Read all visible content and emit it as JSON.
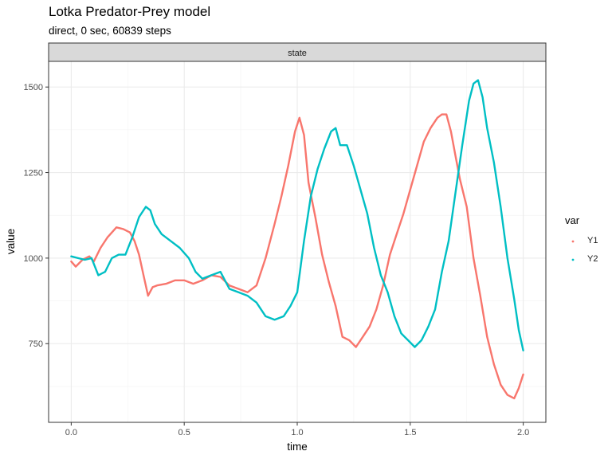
{
  "title": "Lotka Predator-Prey model",
  "subtitle": "direct, 0 sec, 60839 steps",
  "chart_data": {
    "type": "line",
    "title": "Lotka Predator-Prey model",
    "subtitle": "direct, 0 sec, 60839 steps",
    "facet": "state",
    "xlabel": "time",
    "ylabel": "value",
    "xlim": [
      -0.1,
      2.1
    ],
    "ylim": [
      520,
      1575
    ],
    "x_ticks": [
      0.0,
      0.5,
      1.0,
      1.5,
      2.0
    ],
    "x_tick_labels": [
      "0.0",
      "0.5",
      "1.0",
      "1.5",
      "2.0"
    ],
    "y_ticks": [
      750,
      1000,
      1250,
      1500
    ],
    "y_tick_labels": [
      "750",
      "1000",
      "1250",
      "1500"
    ],
    "grid": true,
    "legend": {
      "title": "var",
      "position": "right"
    },
    "series": [
      {
        "name": "Y1",
        "color": "#F8766D",
        "x": [
          0.0,
          0.02,
          0.05,
          0.08,
          0.1,
          0.13,
          0.16,
          0.2,
          0.23,
          0.26,
          0.28,
          0.3,
          0.32,
          0.34,
          0.36,
          0.38,
          0.42,
          0.46,
          0.5,
          0.54,
          0.58,
          0.62,
          0.66,
          0.7,
          0.74,
          0.78,
          0.82,
          0.86,
          0.9,
          0.93,
          0.96,
          0.99,
          1.01,
          1.03,
          1.05,
          1.08,
          1.11,
          1.14,
          1.17,
          1.2,
          1.23,
          1.26,
          1.29,
          1.32,
          1.35,
          1.38,
          1.41,
          1.44,
          1.47,
          1.5,
          1.53,
          1.56,
          1.59,
          1.62,
          1.64,
          1.66,
          1.68,
          1.7,
          1.72,
          1.75,
          1.78,
          1.81,
          1.84,
          1.87,
          1.9,
          1.93,
          1.96,
          1.98,
          2.0
        ],
        "values": [
          990,
          975,
          995,
          1005,
          990,
          1030,
          1060,
          1090,
          1085,
          1075,
          1050,
          1010,
          950,
          890,
          915,
          920,
          925,
          935,
          935,
          925,
          935,
          950,
          945,
          920,
          910,
          900,
          920,
          1000,
          1100,
          1180,
          1270,
          1370,
          1410,
          1360,
          1220,
          1120,
          1010,
          930,
          860,
          770,
          760,
          740,
          770,
          800,
          850,
          920,
          1010,
          1070,
          1130,
          1200,
          1270,
          1340,
          1380,
          1410,
          1420,
          1420,
          1370,
          1300,
          1230,
          1150,
          1000,
          890,
          770,
          690,
          630,
          600,
          590,
          620,
          660
        ]
      },
      {
        "name": "Y2",
        "color": "#00BFC4",
        "x": [
          0.0,
          0.03,
          0.06,
          0.09,
          0.12,
          0.15,
          0.18,
          0.21,
          0.24,
          0.27,
          0.3,
          0.33,
          0.35,
          0.37,
          0.4,
          0.44,
          0.48,
          0.52,
          0.55,
          0.58,
          0.62,
          0.66,
          0.7,
          0.74,
          0.78,
          0.82,
          0.86,
          0.9,
          0.94,
          0.97,
          1.0,
          1.03,
          1.06,
          1.09,
          1.12,
          1.15,
          1.17,
          1.19,
          1.22,
          1.25,
          1.28,
          1.31,
          1.34,
          1.37,
          1.4,
          1.43,
          1.46,
          1.49,
          1.52,
          1.55,
          1.58,
          1.61,
          1.64,
          1.67,
          1.7,
          1.73,
          1.76,
          1.78,
          1.8,
          1.82,
          1.84,
          1.87,
          1.9,
          1.93,
          1.96,
          1.98,
          2.0
        ],
        "values": [
          1005,
          1000,
          995,
          1000,
          950,
          960,
          1000,
          1010,
          1010,
          1060,
          1120,
          1150,
          1140,
          1100,
          1070,
          1050,
          1030,
          1000,
          960,
          940,
          950,
          960,
          910,
          900,
          890,
          870,
          830,
          820,
          830,
          860,
          900,
          1050,
          1180,
          1260,
          1320,
          1370,
          1380,
          1330,
          1330,
          1270,
          1200,
          1130,
          1030,
          950,
          900,
          830,
          780,
          760,
          740,
          760,
          800,
          850,
          960,
          1050,
          1190,
          1330,
          1460,
          1510,
          1520,
          1470,
          1380,
          1280,
          1150,
          1000,
          880,
          790,
          730
        ]
      }
    ]
  }
}
